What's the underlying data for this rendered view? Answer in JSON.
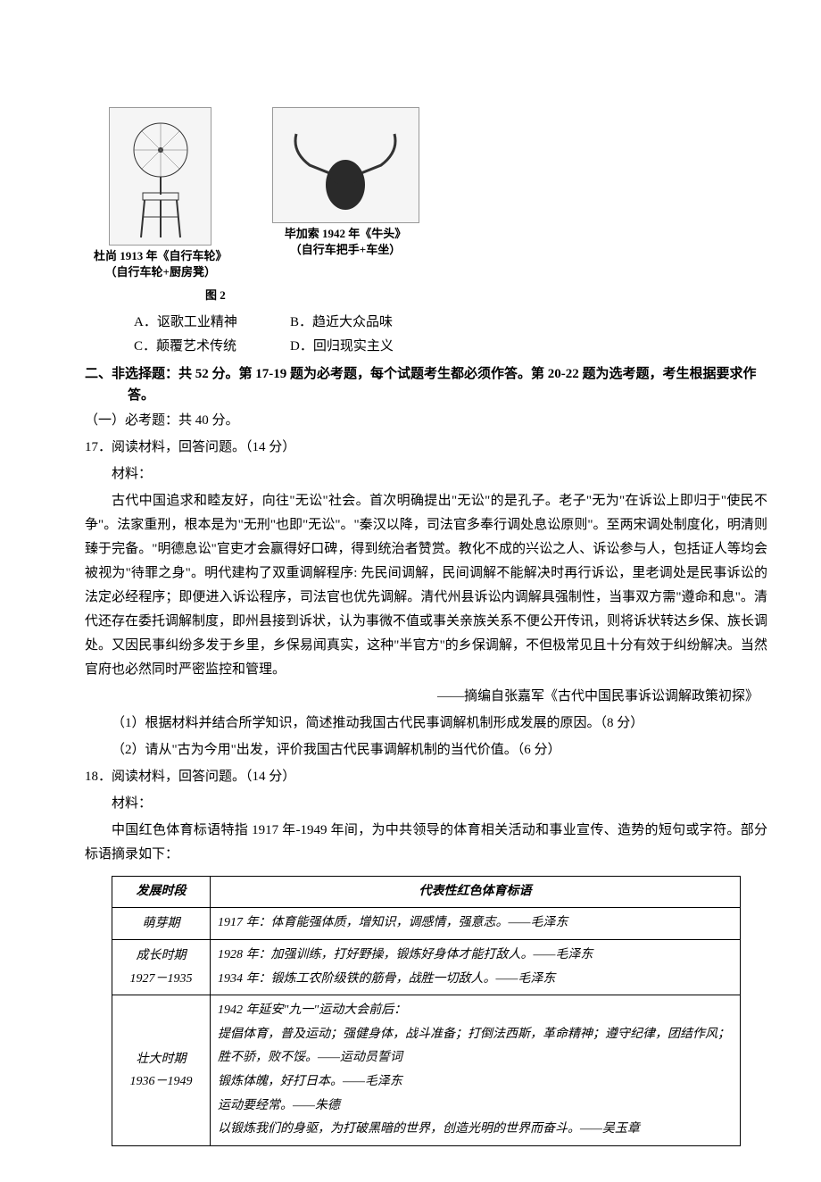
{
  "figure": {
    "img1_caption_line1": "杜尚 1913 年《自行车轮》",
    "img1_caption_line2": "（自行车轮+厨房凳）",
    "img2_caption_line1": "毕加索 1942 年《牛头》",
    "img2_caption_line2": "（自行车把手+车坐）",
    "label": "图 2"
  },
  "q16_options": {
    "a": "A．讴歌工业精神",
    "b": "B．趋近大众品味",
    "c": "C．颠覆艺术传统",
    "d": "D．回归现实主义"
  },
  "section2": {
    "header": "二、非选择题：共 52 分。第 17-19 题为必考题，每个试题考生都必须作答。第 20-22 题为选考题，考生根据要求作答。",
    "sub1": "（一）必考题：共 40 分。"
  },
  "q17": {
    "num": "17．阅读材料，回答问题。（14 分）",
    "material_label": "材料：",
    "para": "古代中国追求和睦友好，向往\"无讼\"社会。首次明确提出\"无讼\"的是孔子。老子\"无为\"在诉讼上即归于\"使民不争\"。法家重刑，根本是为\"无刑\"也即\"无讼\"。\"秦汉以降，司法官多奉行调处息讼原则\"。至两宋调处制度化，明清则臻于完备。\"明德息讼\"官吏才会赢得好口碑，得到统治者赞赏。教化不成的兴讼之人、诉讼参与人，包括证人等均会被视为\"待罪之身\"。明代建构了双重调解程序: 先民间调解，民间调解不能解决时再行诉讼，里老调处是民事诉讼的法定必经程序；即便进入诉讼程序，司法官也优先调解。清代州县诉讼内调解具强制性，当事双方需\"遵命和息\"。清代还存在委托调解制度，即州县接到诉状，认为事微不值或事关亲族关系不便公开传讯，则将诉状转达乡保、族长调处。又因民事纠纷多发于乡里，乡保易闻真实，这种\"半官方\"的乡保调解，不但极常见且十分有效于纠纷解决。当然官府也必然同时严密监控和管理。",
    "source": "——摘编自张嘉军《古代中国民事诉讼调解政策初探》",
    "sub1": "（1）根据材料并结合所学知识，简述推动我国古代民事调解机制形成发展的原因。（8 分）",
    "sub2": "（2）请从\"古为今用\"出发，评价我国古代民事调解机制的当代价值。（6 分）"
  },
  "q18": {
    "num": "18．阅读材料，回答问题。（14 分）",
    "material_label": "材料：",
    "intro": "中国红色体育标语特指 1917 年-1949 年间，为中共领导的体育相关活动和事业宣传、造势的短句或字符。部分标语摘录如下："
  },
  "table": {
    "headers": [
      "发展时段",
      "代表性红色体育标语"
    ],
    "rows": [
      {
        "period": "萌芽期",
        "content": "1917 年：体育能强体质，增知识，调感情，强意志。——毛泽东"
      },
      {
        "period": "成长时期\n1927－1935",
        "content": "1928 年：加强训练，打好野操，锻炼好身体才能打敌人。——毛泽东\n1934 年：锻炼工农阶级铁的筋骨，战胜一切敌人。——毛泽东"
      },
      {
        "period": "壮大时期\n1936－1949",
        "content": "1942 年延安\"九一\"运动大会前后：\n提倡体育，普及运动；强健身体，战斗准备；打倒法西斯，革命精神；遵守纪律，团结作风；胜不骄，败不馁。——运动员誓词\n锻炼体魄，好打日本。——毛泽东\n运动要经常。——朱德\n以锻炼我们的身驱，为打破黑暗的世界，创造光明的世界而奋斗。——吴玉章"
      }
    ]
  }
}
